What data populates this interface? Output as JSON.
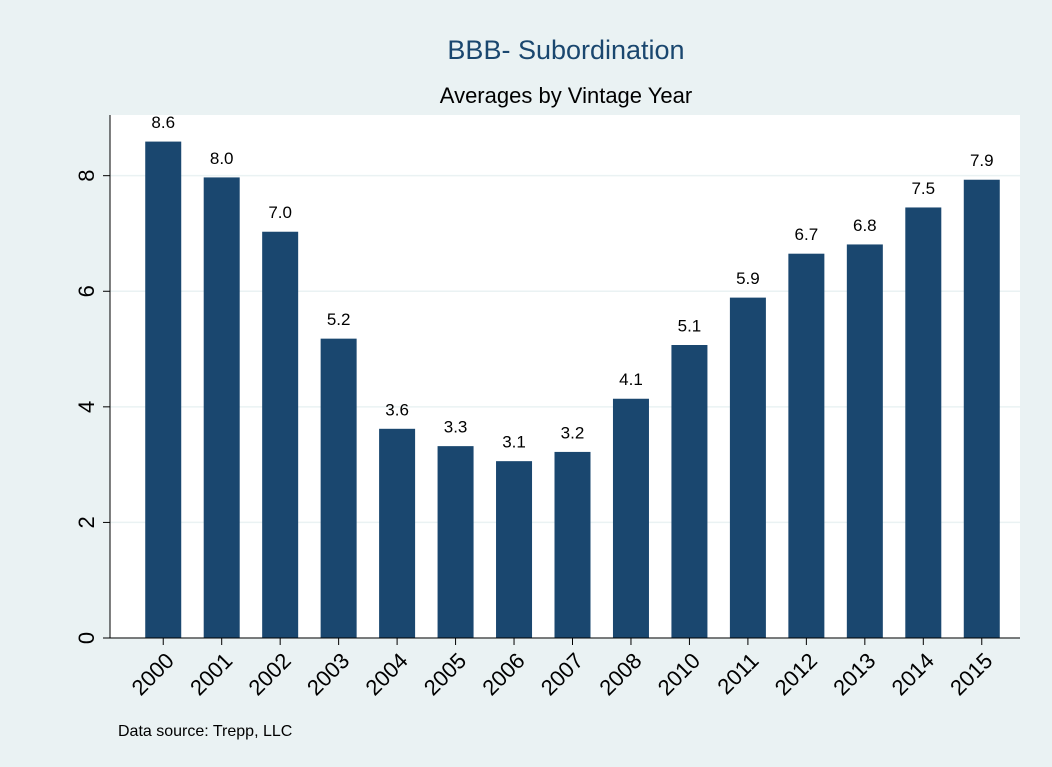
{
  "chart_data": {
    "type": "bar",
    "title": "BBB- Subordination",
    "subtitle": "Averages by Vintage Year",
    "note": "Data source: Trepp, LLC",
    "categories": [
      "2000",
      "2001",
      "2002",
      "2003",
      "2004",
      "2005",
      "2006",
      "2007",
      "2008",
      "2010",
      "2011",
      "2012",
      "2013",
      "2014",
      "2015"
    ],
    "values": [
      8.59,
      7.97,
      7.03,
      5.18,
      3.62,
      3.32,
      3.06,
      3.22,
      4.14,
      5.07,
      5.89,
      6.65,
      6.81,
      7.45,
      7.93
    ],
    "value_labels": [
      "8.6",
      "8.0",
      "7.0",
      "5.2",
      "3.6",
      "3.3",
      "3.1",
      "3.2",
      "4.1",
      "5.1",
      "5.9",
      "6.7",
      "6.8",
      "7.5",
      "7.9"
    ],
    "color": "#1a476f",
    "ylim": [
      0,
      9.05
    ],
    "yticks": [
      0,
      2,
      4,
      6,
      8
    ],
    "grid": true
  }
}
